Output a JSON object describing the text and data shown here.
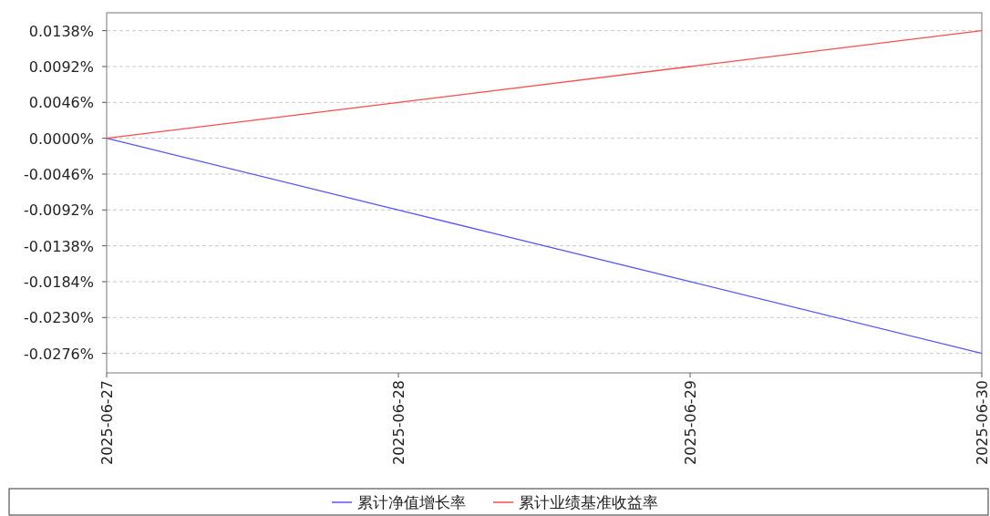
{
  "chart_data": {
    "type": "line",
    "x": [
      "2025-06-27",
      "2025-06-28",
      "2025-06-29",
      "2025-06-30"
    ],
    "series": [
      {
        "name": "累计净值增长率",
        "color": "#5555ff",
        "values": [
          0,
          -0.0092,
          -0.0184,
          -0.0276
        ]
      },
      {
        "name": "累计业绩基准收益率",
        "color": "#ff4d4d",
        "values": [
          0,
          0.0046,
          0.0092,
          0.0138
        ]
      }
    ],
    "xlim": [
      "2025-06-27",
      "2025-06-30"
    ],
    "xticks": [
      "2025-06-27",
      "2025-06-28",
      "2025-06-29",
      "2025-06-30"
    ],
    "ylim": [
      -0.0301,
      0.0161
    ],
    "yticks": [
      {
        "value": -0.0276,
        "label": "-0.0276%"
      },
      {
        "value": -0.023,
        "label": "-0.0230%"
      },
      {
        "value": -0.0184,
        "label": "-0.0184%"
      },
      {
        "value": -0.0138,
        "label": "-0.0138%"
      },
      {
        "value": -0.0092,
        "label": "-0.0092%"
      },
      {
        "value": -0.0046,
        "label": "-0.0046%"
      },
      {
        "value": 0,
        "label": "0.0000%"
      },
      {
        "value": 0.0046,
        "label": "0.0046%"
      },
      {
        "value": 0.0092,
        "label": "0.0092%"
      },
      {
        "value": 0.0138,
        "label": "0.0138%"
      }
    ],
    "grid": "y",
    "legend": "bottom",
    "marker": "none",
    "line_style": "solid"
  }
}
